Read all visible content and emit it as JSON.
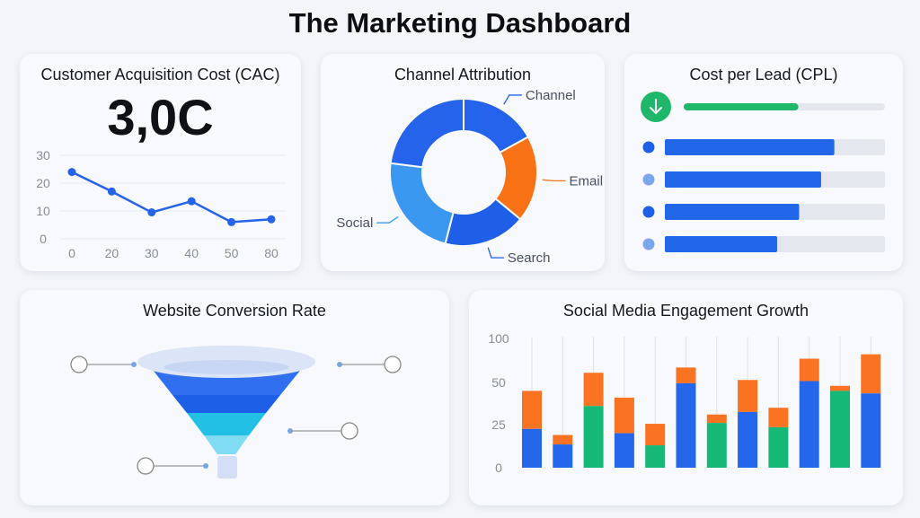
{
  "page_title": "The Marketing Dashboard",
  "cac": {
    "title": "Customer Acquisition Cost (CAC)",
    "value": "3,0C",
    "chart_data": {
      "type": "line",
      "x": [
        "0",
        "20",
        "30",
        "40",
        "50",
        "80"
      ],
      "values": [
        24,
        17,
        9.5,
        13.5,
        6,
        7
      ],
      "yticks": [
        0,
        10,
        20,
        30
      ],
      "ylim": [
        0,
        30
      ],
      "grid": true,
      "color": "#2563eb"
    }
  },
  "channel": {
    "title": "Channel Attribution",
    "chart_data": {
      "type": "pie",
      "donut": true,
      "slices": [
        {
          "name": "Channel",
          "value": 17,
          "color": "#2463eb"
        },
        {
          "name": "Email",
          "value": 19,
          "color": "#f97316"
        },
        {
          "name": "Search",
          "value": 18,
          "color": "#1f5fe8"
        },
        {
          "name": "Social",
          "value": 23,
          "color": "#3b98f0"
        },
        {
          "name": "",
          "value": 23,
          "color": "#2563eb"
        }
      ]
    }
  },
  "cpl": {
    "title": "Cost per Lead (CPL)",
    "icon": "arrow-down-icon",
    "summary_progress": 57,
    "summary_color": "#1fb86b",
    "bars": [
      {
        "value": 77,
        "dot": "#1d5fe6"
      },
      {
        "value": 71,
        "dot": "#7aa6ee"
      },
      {
        "value": 61,
        "dot": "#1d5fe6"
      },
      {
        "value": 51,
        "dot": "#7aa6ee"
      }
    ]
  },
  "conversion": {
    "title": "Website Conversion Rate",
    "stage_colors": [
      "#2f6ff0",
      "#1d5fe6",
      "#23c0e6",
      "#7fdcf2"
    ]
  },
  "social": {
    "title": "Social Media Engagement Growth",
    "chart_data": {
      "type": "bar",
      "stacked": true,
      "yticks": [
        0,
        25,
        50,
        100
      ],
      "ylim": [
        0,
        100
      ],
      "bars": [
        {
          "base": 22.5,
          "base_color": "#2467eb",
          "top": 45
        },
        {
          "base": 13.5,
          "base_color": "#2467eb",
          "top": 19
        },
        {
          "base": 36,
          "base_color": "#16b877",
          "top": 61
        },
        {
          "base": 20,
          "base_color": "#2467eb",
          "top": 41
        },
        {
          "base": 13,
          "base_color": "#16b877",
          "top": 25.5
        },
        {
          "base": 49.5,
          "base_color": "#2467eb",
          "top": 67
        },
        {
          "base": 26,
          "base_color": "#16b877",
          "top": 31
        },
        {
          "base": 32.5,
          "base_color": "#2467eb",
          "top": 52.8
        },
        {
          "base": 23.5,
          "base_color": "#16b877",
          "top": 35
        },
        {
          "base": 51.5,
          "base_color": "#2467eb",
          "top": 77
        },
        {
          "base": 45,
          "base_color": "#16b877",
          "top": 48
        },
        {
          "base": 43.5,
          "base_color": "#2467eb",
          "top": 82
        }
      ],
      "top_color": "#f97323"
    }
  }
}
